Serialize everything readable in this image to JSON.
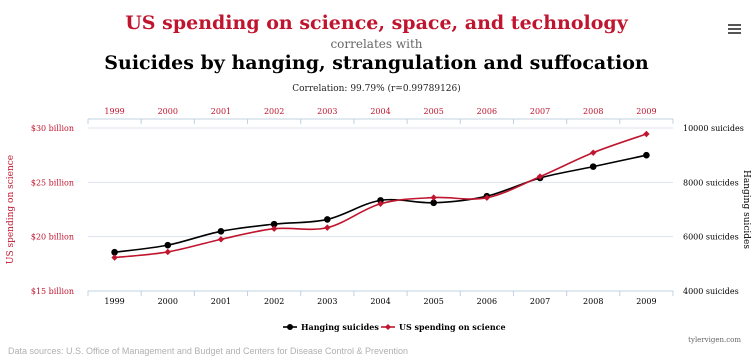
{
  "header": {
    "title_top": "US spending on science, space, and technology",
    "title_middle": "correlates with",
    "title_bottom": "Suicides by hanging, strangulation and suffocation",
    "correlation": "Correlation: 99.79% (r=0.99789126)",
    "menu_icon": "hamburger-menu-icon"
  },
  "chart_data": {
    "type": "line",
    "x": [
      "1999",
      "2000",
      "2001",
      "2002",
      "2003",
      "2004",
      "2005",
      "2006",
      "2007",
      "2008",
      "2009"
    ],
    "series": [
      {
        "name": "Hanging suicides",
        "axis": "right",
        "color": "#000000",
        "values": [
          5427,
          5688,
          6198,
          6462,
          6635,
          7336,
          7248,
          7491,
          8161,
          8578,
          9000
        ]
      },
      {
        "name": "US spending on science",
        "axis": "left",
        "color": "#c0152f",
        "values": [
          18079,
          18594,
          19753,
          20734,
          20831,
          23029,
          23597,
          23584,
          25525,
          27731,
          29449
        ]
      }
    ],
    "ylabel_left": "US spending on science",
    "ylabel_right": "Hanging suicides",
    "ylim_left": [
      15000,
      30000
    ],
    "ylim_right": [
      4000,
      10000
    ],
    "yticks_left": [
      {
        "value": 30000,
        "label": "$30 billion"
      },
      {
        "value": 25000,
        "label": "$25 billion"
      },
      {
        "value": 20000,
        "label": "$20 billion"
      },
      {
        "value": 15000,
        "label": "$15 billion"
      }
    ],
    "yticks_right": [
      {
        "value": 10000,
        "label": "10000 suicides"
      },
      {
        "value": 8000,
        "label": "8000 suicides"
      },
      {
        "value": 6000,
        "label": "6000 suicides"
      },
      {
        "value": 4000,
        "label": "4000 suicides"
      }
    ],
    "grid": true,
    "legend": "bottom-center",
    "colors": {
      "left_axis": "#c0152f",
      "right_axis": "#000000",
      "grid": "#dde3ee",
      "axis_line": "#c0d0e0"
    }
  },
  "footer": {
    "source": "Data sources: U.S. Office of Management and Budget and Centers for Disease Control & Prevention",
    "credit": "tylervigen.com"
  }
}
